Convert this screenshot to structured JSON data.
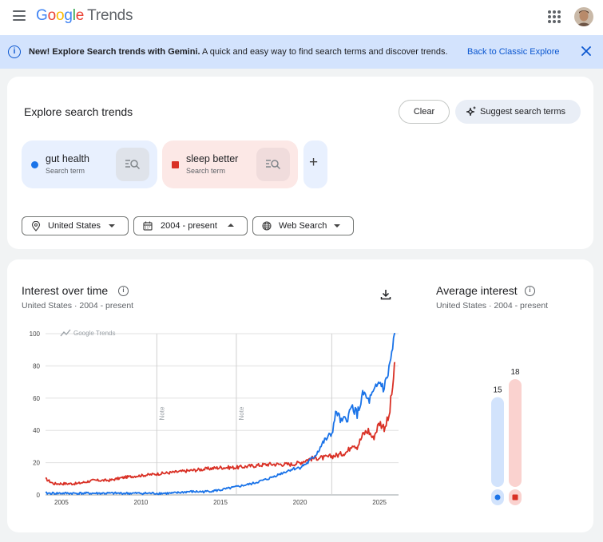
{
  "header": {
    "logo_google": [
      "G",
      "o",
      "o",
      "g",
      "l",
      "e"
    ],
    "logo_trends": "Trends",
    "logo_colors": [
      "#4285F4",
      "#EA4335",
      "#FBBC05",
      "#4285F4",
      "#34A853",
      "#EA4335"
    ]
  },
  "banner": {
    "bold": "New! Explore Search trends with Gemini.",
    "text": " A quick and easy way to find search terms and discover trends.",
    "link": "Back to Classic Explore"
  },
  "explore": {
    "title": "Explore search trends",
    "clear": "Clear",
    "suggest": "Suggest search terms",
    "terms": [
      {
        "name": "gut health",
        "type": "Search term",
        "color": "#1a73e8"
      },
      {
        "name": "sleep better",
        "type": "Search term",
        "color": "#d93025"
      }
    ],
    "add": "+",
    "filters": {
      "location": "United States",
      "time": "2004 - present",
      "property": "Web Search"
    }
  },
  "interest": {
    "title": "Interest over time",
    "subtitle": "United States · 2004 - present",
    "watermark": "Google Trends"
  },
  "average": {
    "title": "Average interest",
    "subtitle": "United States · 2004 - present",
    "values": [
      15,
      18
    ],
    "labels": [
      "15",
      "18"
    ]
  },
  "chart_data": {
    "type": "line",
    "ylim": [
      0,
      100
    ],
    "yticks": [
      "100",
      "80",
      "60",
      "40",
      "20",
      "0"
    ],
    "xticks": [
      "2005",
      "2010",
      "2015",
      "2020",
      "2025"
    ],
    "notes": [
      "Note",
      "Note"
    ],
    "series": [
      {
        "color": "#1a73e8",
        "points": [
          [
            2004.0,
            1
          ],
          [
            2005,
            1
          ],
          [
            2006,
            1
          ],
          [
            2007,
            1
          ],
          [
            2008,
            1
          ],
          [
            2009,
            1
          ],
          [
            2010,
            1
          ],
          [
            2011,
            1
          ],
          [
            2012,
            1
          ],
          [
            2013,
            2
          ],
          [
            2014,
            2
          ],
          [
            2015,
            3
          ],
          [
            2016,
            5
          ],
          [
            2017,
            7
          ],
          [
            2018,
            10
          ],
          [
            2019,
            14
          ],
          [
            2019.5,
            16
          ],
          [
            2020,
            17
          ],
          [
            2020.5,
            20
          ],
          [
            2021,
            25
          ],
          [
            2021.5,
            33
          ],
          [
            2022,
            38
          ],
          [
            2022.3,
            52
          ],
          [
            2022.6,
            45
          ],
          [
            2023,
            48
          ],
          [
            2023.3,
            55
          ],
          [
            2023.6,
            50
          ],
          [
            2024,
            63
          ],
          [
            2024.3,
            58
          ],
          [
            2024.6,
            62
          ],
          [
            2025,
            70
          ],
          [
            2025.3,
            66
          ],
          [
            2025.6,
            78
          ],
          [
            2026,
            100
          ]
        ]
      },
      {
        "color": "#d93025",
        "points": [
          [
            2004.0,
            10
          ],
          [
            2004.5,
            7
          ],
          [
            2005,
            7
          ],
          [
            2006,
            7
          ],
          [
            2007,
            9
          ],
          [
            2008,
            9
          ],
          [
            2009,
            11
          ],
          [
            2010,
            12
          ],
          [
            2011,
            13
          ],
          [
            2012,
            14
          ],
          [
            2013,
            15
          ],
          [
            2014,
            16
          ],
          [
            2015,
            17
          ],
          [
            2016,
            17
          ],
          [
            2017,
            18
          ],
          [
            2018,
            19
          ],
          [
            2019,
            19
          ],
          [
            2019.5,
            19
          ],
          [
            2020,
            20
          ],
          [
            2020.5,
            22
          ],
          [
            2021,
            23
          ],
          [
            2021.5,
            23
          ],
          [
            2022,
            24
          ],
          [
            2022.5,
            25
          ],
          [
            2023,
            27
          ],
          [
            2023.3,
            32
          ],
          [
            2023.6,
            30
          ],
          [
            2024,
            38
          ],
          [
            2024.3,
            40
          ],
          [
            2024.6,
            35
          ],
          [
            2025,
            45
          ],
          [
            2025.3,
            42
          ],
          [
            2025.6,
            48
          ],
          [
            2026,
            82
          ]
        ]
      }
    ]
  }
}
